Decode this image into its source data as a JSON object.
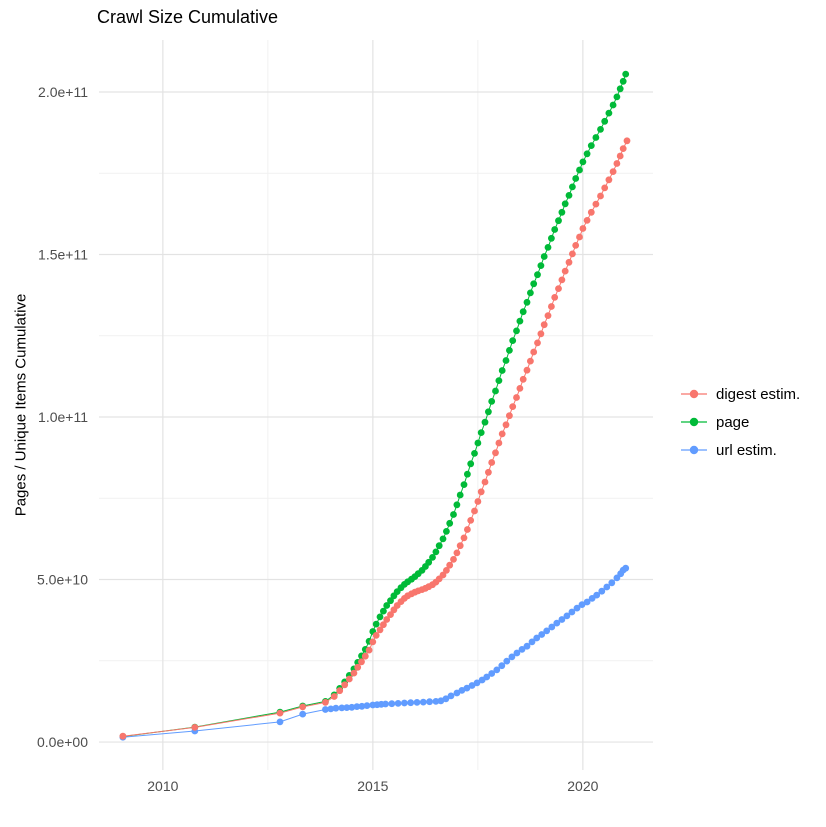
{
  "title": "Crawl Size Cumulative",
  "y_axis_title": "Pages / Unique Items Cumulative",
  "legend": {
    "position": "right",
    "items": [
      {
        "label": "digest estim.",
        "color": "#F8766D"
      },
      {
        "label": "page",
        "color": "#00BA38"
      },
      {
        "label": "url estim.",
        "color": "#619CFF"
      }
    ]
  },
  "colors": {
    "digest_estim": "#F8766D",
    "page": "#00BA38",
    "url_estim": "#619CFF",
    "grid_major": "#E3E3E3",
    "grid_minor": "#F1F1F1",
    "tick_text": "#4D4D4D",
    "background": "#FFFFFF"
  },
  "chart_data": {
    "type": "scatter",
    "title": "Crawl Size Cumulative",
    "xlabel": "",
    "ylabel": "Pages / Unique Items Cumulative",
    "grid": true,
    "legend_position": "right",
    "values_unit": "billions (1e9) of pages / unique items",
    "xlim": [
      2008.48,
      2021.67
    ],
    "ylim_e9": [
      -8.6,
      216
    ],
    "x_ticks": {
      "major": [
        2010,
        2015,
        2020
      ],
      "minor": [
        2012.5,
        2017.5
      ],
      "labels": [
        "2010",
        "2015",
        "2020"
      ]
    },
    "y_ticks": {
      "major_e9": [
        0,
        50,
        100,
        150,
        200
      ],
      "minor_e9": [
        25,
        75,
        125,
        175
      ],
      "labels": [
        "0.0e+00",
        "5.0e+10",
        "1.0e+11",
        "1.5e+11",
        "2.0e+11"
      ]
    },
    "series": [
      {
        "name": "digest estim.",
        "color": "#F8766D",
        "points_year_value_e9": [
          [
            2009.05,
            1.8
          ],
          [
            2010.76,
            4.5
          ],
          [
            2012.79,
            8.9
          ],
          [
            2013.33,
            10.8
          ],
          [
            2013.87,
            12.2
          ],
          [
            2014.08,
            14.0
          ],
          [
            2014.21,
            15.8
          ],
          [
            2014.33,
            17.6
          ],
          [
            2014.44,
            19.4
          ],
          [
            2014.55,
            21.2
          ],
          [
            2014.64,
            23.0
          ],
          [
            2014.73,
            24.7
          ],
          [
            2014.82,
            26.4
          ],
          [
            2014.91,
            28.3
          ],
          [
            2015.0,
            30.8
          ],
          [
            2015.08,
            32.8
          ],
          [
            2015.17,
            34.5
          ],
          [
            2015.25,
            36.1
          ],
          [
            2015.33,
            37.7
          ],
          [
            2015.42,
            39.2
          ],
          [
            2015.5,
            40.7
          ],
          [
            2015.58,
            42.0
          ],
          [
            2015.67,
            43.2
          ],
          [
            2015.75,
            44.2
          ],
          [
            2015.83,
            45.0
          ],
          [
            2015.92,
            45.6
          ],
          [
            2016.0,
            46.1
          ],
          [
            2016.08,
            46.5
          ],
          [
            2016.17,
            46.9
          ],
          [
            2016.25,
            47.3
          ],
          [
            2016.33,
            47.8
          ],
          [
            2016.42,
            48.4
          ],
          [
            2016.5,
            49.2
          ],
          [
            2016.58,
            50.2
          ],
          [
            2016.67,
            51.4
          ],
          [
            2016.75,
            52.8
          ],
          [
            2016.83,
            54.4
          ],
          [
            2016.92,
            56.2
          ],
          [
            2017.0,
            58.2
          ],
          [
            2017.08,
            60.4
          ],
          [
            2017.17,
            62.8
          ],
          [
            2017.25,
            65.4
          ],
          [
            2017.33,
            68.2
          ],
          [
            2017.42,
            71.1
          ],
          [
            2017.5,
            74.0
          ],
          [
            2017.58,
            77.0
          ],
          [
            2017.67,
            80.0
          ],
          [
            2017.75,
            83.0
          ],
          [
            2017.83,
            86.0
          ],
          [
            2017.92,
            89.0
          ],
          [
            2018.0,
            92.0
          ],
          [
            2018.08,
            94.8
          ],
          [
            2018.17,
            97.6
          ],
          [
            2018.25,
            100.4
          ],
          [
            2018.33,
            103.2
          ],
          [
            2018.42,
            106.0
          ],
          [
            2018.5,
            108.8
          ],
          [
            2018.58,
            111.6
          ],
          [
            2018.67,
            114.4
          ],
          [
            2018.75,
            117.2
          ],
          [
            2018.83,
            120.0
          ],
          [
            2018.92,
            122.8
          ],
          [
            2019.0,
            125.6
          ],
          [
            2019.08,
            128.4
          ],
          [
            2019.17,
            131.2
          ],
          [
            2019.25,
            134.0
          ],
          [
            2019.33,
            136.8
          ],
          [
            2019.42,
            139.5
          ],
          [
            2019.5,
            142.2
          ],
          [
            2019.58,
            144.9
          ],
          [
            2019.67,
            147.6
          ],
          [
            2019.75,
            150.2
          ],
          [
            2019.83,
            152.8
          ],
          [
            2019.92,
            155.4
          ],
          [
            2020.0,
            158.0
          ],
          [
            2020.1,
            160.5
          ],
          [
            2020.2,
            163.0
          ],
          [
            2020.31,
            165.5
          ],
          [
            2020.42,
            168.0
          ],
          [
            2020.52,
            170.5
          ],
          [
            2020.62,
            173.0
          ],
          [
            2020.72,
            175.5
          ],
          [
            2020.81,
            178.0
          ],
          [
            2020.89,
            180.3
          ],
          [
            2020.96,
            182.6
          ],
          [
            2021.05,
            185.0
          ]
        ]
      },
      {
        "name": "page",
        "color": "#00BA38",
        "points_year_value_e9": [
          [
            2009.05,
            1.7
          ],
          [
            2010.76,
            4.6
          ],
          [
            2012.79,
            9.2
          ],
          [
            2013.33,
            11.1
          ],
          [
            2013.87,
            12.5
          ],
          [
            2014.08,
            14.5
          ],
          [
            2014.21,
            16.5
          ],
          [
            2014.33,
            18.5
          ],
          [
            2014.44,
            20.5
          ],
          [
            2014.55,
            22.5
          ],
          [
            2014.64,
            24.5
          ],
          [
            2014.73,
            26.5
          ],
          [
            2014.82,
            28.5
          ],
          [
            2014.91,
            31.0
          ],
          [
            2015.0,
            34.0
          ],
          [
            2015.08,
            36.3
          ],
          [
            2015.17,
            38.5
          ],
          [
            2015.25,
            40.3
          ],
          [
            2015.33,
            42.0
          ],
          [
            2015.42,
            43.5
          ],
          [
            2015.5,
            45.0
          ],
          [
            2015.58,
            46.3
          ],
          [
            2015.67,
            47.5
          ],
          [
            2015.75,
            48.5
          ],
          [
            2015.83,
            49.3
          ],
          [
            2015.92,
            50.1
          ],
          [
            2016.0,
            50.9
          ],
          [
            2016.08,
            51.8
          ],
          [
            2016.17,
            52.8
          ],
          [
            2016.25,
            54.0
          ],
          [
            2016.33,
            55.3
          ],
          [
            2016.42,
            56.8
          ],
          [
            2016.5,
            58.5
          ],
          [
            2016.58,
            60.4
          ],
          [
            2016.67,
            62.5
          ],
          [
            2016.75,
            64.8
          ],
          [
            2016.83,
            67.3
          ],
          [
            2016.92,
            70.0
          ],
          [
            2017.0,
            73.0
          ],
          [
            2017.08,
            76.0
          ],
          [
            2017.17,
            79.2
          ],
          [
            2017.25,
            82.4
          ],
          [
            2017.33,
            85.6
          ],
          [
            2017.42,
            88.8
          ],
          [
            2017.5,
            92.0
          ],
          [
            2017.58,
            95.2
          ],
          [
            2017.67,
            98.4
          ],
          [
            2017.75,
            101.6
          ],
          [
            2017.83,
            104.8
          ],
          [
            2017.92,
            108.0
          ],
          [
            2018.0,
            111.2
          ],
          [
            2018.08,
            114.3
          ],
          [
            2018.17,
            117.4
          ],
          [
            2018.25,
            120.5
          ],
          [
            2018.33,
            123.5
          ],
          [
            2018.42,
            126.5
          ],
          [
            2018.5,
            129.5
          ],
          [
            2018.58,
            132.4
          ],
          [
            2018.67,
            135.3
          ],
          [
            2018.75,
            138.2
          ],
          [
            2018.83,
            141.0
          ],
          [
            2018.92,
            143.8
          ],
          [
            2019.0,
            146.6
          ],
          [
            2019.08,
            149.4
          ],
          [
            2019.17,
            152.2
          ],
          [
            2019.25,
            155.0
          ],
          [
            2019.33,
            157.7
          ],
          [
            2019.42,
            160.4
          ],
          [
            2019.5,
            163.0
          ],
          [
            2019.58,
            165.6
          ],
          [
            2019.67,
            168.2
          ],
          [
            2019.75,
            170.8
          ],
          [
            2019.83,
            173.4
          ],
          [
            2019.92,
            176.0
          ],
          [
            2020.0,
            178.5
          ],
          [
            2020.1,
            181.0
          ],
          [
            2020.2,
            183.5
          ],
          [
            2020.31,
            186.0
          ],
          [
            2020.42,
            188.5
          ],
          [
            2020.52,
            191.0
          ],
          [
            2020.62,
            193.5
          ],
          [
            2020.72,
            196.0
          ],
          [
            2020.81,
            198.5
          ],
          [
            2020.89,
            201.0
          ],
          [
            2020.96,
            203.3
          ],
          [
            2021.02,
            205.5
          ]
        ]
      },
      {
        "name": "url estim.",
        "color": "#619CFF",
        "points_year_value_e9": [
          [
            2009.05,
            1.5
          ],
          [
            2010.76,
            3.4
          ],
          [
            2012.79,
            6.2
          ],
          [
            2013.33,
            8.6
          ],
          [
            2013.87,
            10.0
          ],
          [
            2014.0,
            10.2
          ],
          [
            2014.12,
            10.4
          ],
          [
            2014.26,
            10.5
          ],
          [
            2014.38,
            10.6
          ],
          [
            2014.5,
            10.7
          ],
          [
            2014.62,
            10.9
          ],
          [
            2014.74,
            11.0
          ],
          [
            2014.86,
            11.2
          ],
          [
            2015.0,
            11.4
          ],
          [
            2015.1,
            11.5
          ],
          [
            2015.2,
            11.6
          ],
          [
            2015.3,
            11.7
          ],
          [
            2015.45,
            11.8
          ],
          [
            2015.6,
            11.9
          ],
          [
            2015.75,
            12.0
          ],
          [
            2015.9,
            12.1
          ],
          [
            2016.05,
            12.2
          ],
          [
            2016.2,
            12.3
          ],
          [
            2016.35,
            12.4
          ],
          [
            2016.5,
            12.5
          ],
          [
            2016.62,
            12.7
          ],
          [
            2016.74,
            13.3
          ],
          [
            2016.86,
            14.2
          ],
          [
            2017.0,
            15.1
          ],
          [
            2017.12,
            15.9
          ],
          [
            2017.24,
            16.6
          ],
          [
            2017.36,
            17.4
          ],
          [
            2017.48,
            18.2
          ],
          [
            2017.6,
            19.1
          ],
          [
            2017.71,
            20.0
          ],
          [
            2017.83,
            21.1
          ],
          [
            2017.95,
            22.2
          ],
          [
            2018.07,
            23.5
          ],
          [
            2018.19,
            24.9
          ],
          [
            2018.31,
            26.2
          ],
          [
            2018.43,
            27.4
          ],
          [
            2018.55,
            28.5
          ],
          [
            2018.67,
            29.5
          ],
          [
            2018.79,
            30.8
          ],
          [
            2018.9,
            32.0
          ],
          [
            2019.02,
            33.1
          ],
          [
            2019.14,
            34.2
          ],
          [
            2019.26,
            35.4
          ],
          [
            2019.38,
            36.6
          ],
          [
            2019.5,
            37.7
          ],
          [
            2019.62,
            38.8
          ],
          [
            2019.74,
            40.0
          ],
          [
            2019.86,
            41.2
          ],
          [
            2019.98,
            42.3
          ],
          [
            2020.1,
            43.1
          ],
          [
            2020.22,
            44.2
          ],
          [
            2020.33,
            45.2
          ],
          [
            2020.45,
            46.4
          ],
          [
            2020.57,
            47.7
          ],
          [
            2020.69,
            49.0
          ],
          [
            2020.81,
            50.5
          ],
          [
            2020.9,
            51.8
          ],
          [
            2020.96,
            52.9
          ],
          [
            2021.02,
            53.5
          ]
        ]
      }
    ]
  }
}
